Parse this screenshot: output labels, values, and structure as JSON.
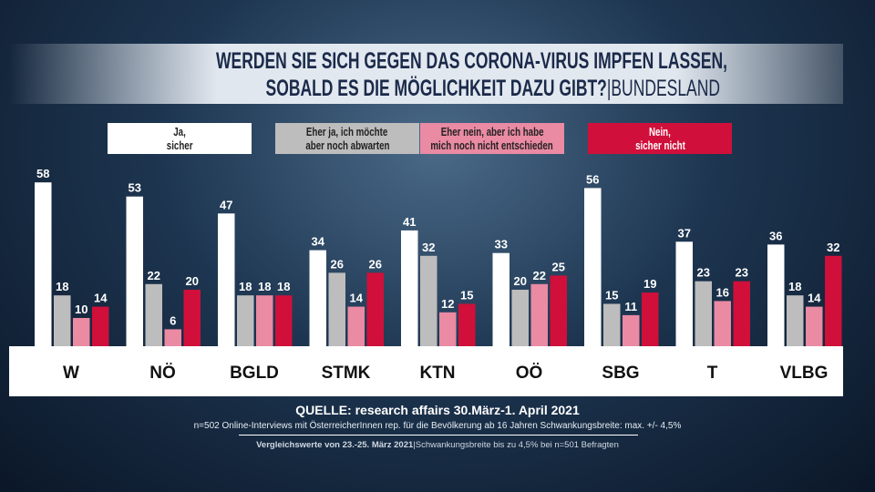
{
  "chart_data": {
    "type": "bar",
    "title_line1": "WERDEN SIE SICH GEGEN DAS CORONA-VIRUS IMPFEN LASSEN,",
    "title_line2": "SOBALD ES DIE MÖGLICHKEIT DAZU GIBT?",
    "title_suffix": "|BUNDESLAND",
    "categories": [
      "W",
      "NÖ",
      "BGLD",
      "STMK",
      "KTN",
      "OÖ",
      "SBG",
      "T",
      "VLBG"
    ],
    "series": [
      {
        "name": "Ja,\nsicher",
        "color": "#ffffff",
        "values": [
          58,
          53,
          47,
          34,
          41,
          33,
          56,
          37,
          36
        ]
      },
      {
        "name": "Eher ja, ich möchte\naber noch abwarten",
        "color": "#bdbdbd",
        "values": [
          18,
          22,
          18,
          26,
          32,
          20,
          15,
          23,
          18
        ]
      },
      {
        "name": "Eher nein, aber ich habe\nmich noch nicht entschieden",
        "color": "#ea8aa3",
        "values": [
          10,
          6,
          18,
          14,
          12,
          22,
          11,
          16,
          14
        ]
      },
      {
        "name": "Nein,\nsicher nicht",
        "color": "#d0103a",
        "values": [
          14,
          20,
          18,
          26,
          15,
          25,
          19,
          23,
          32
        ]
      }
    ],
    "ylim": [
      0,
      60
    ],
    "grid": false,
    "legend_placement": "top"
  },
  "footer": {
    "source": "QUELLE: research affairs 30.März-1. April 2021",
    "method": "n=502 Online-Interviews mit ÖsterreicherInnen rep. für die Bevölkerung ab 16 Jahren  Schwankungsbreite: max. +/- 4,5%",
    "compare_bold": "Vergleichswerte von 23.-25. März 2021",
    "compare_rest": "|Schwankungsbreite bis zu 4,5% bei n=501 Befragten"
  }
}
